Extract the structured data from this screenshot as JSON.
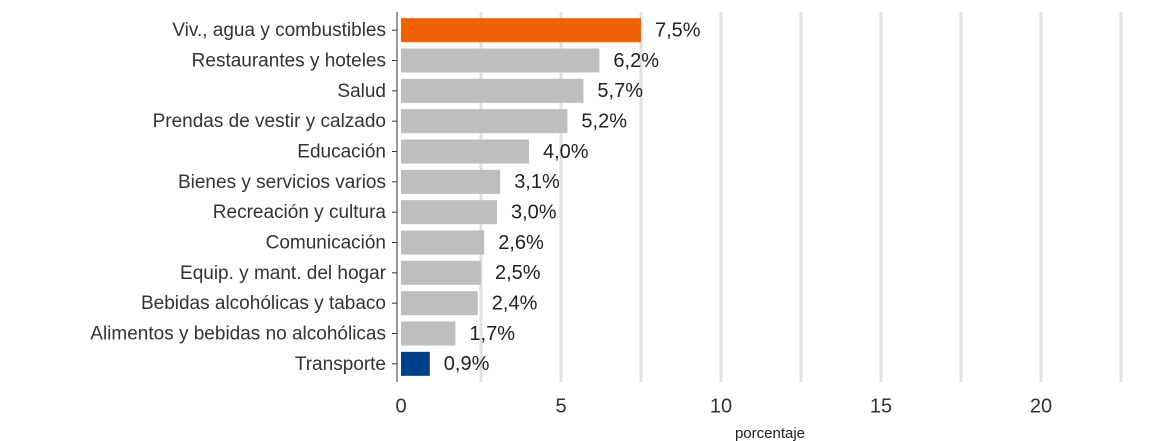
{
  "chart_data": {
    "type": "barh",
    "xlabel": "porcentaje",
    "categories": [
      "Viv., agua y combustibles",
      "Restaurantes y hoteles",
      "Salud",
      "Prendas de vestir y calzado",
      "Educación",
      "Bienes y servicios varios",
      "Recreación y cultura",
      "Comunicación",
      "Equip. y mant. del hogar",
      "Bebidas alcohólicas y tabaco",
      "Alimentos y bebidas no alcohólicas",
      "Transporte"
    ],
    "values": [
      7.5,
      6.2,
      5.7,
      5.2,
      4.0,
      3.1,
      3.0,
      2.6,
      2.5,
      2.4,
      1.7,
      0.9
    ],
    "value_labels": [
      "7,5%",
      "6,2%",
      "5,7%",
      "5,2%",
      "4,0%",
      "3,1%",
      "3,0%",
      "2,6%",
      "2,5%",
      "2,4%",
      "1,7%",
      "0,9%"
    ],
    "colors": [
      "#f26101",
      "#bebebe",
      "#bebebe",
      "#bebebe",
      "#bebebe",
      "#bebebe",
      "#bebebe",
      "#bebebe",
      "#bebebe",
      "#bebebe",
      "#bebebe",
      "#003f8a"
    ],
    "xlim": [
      0,
      23
    ],
    "xticks": [
      0,
      5,
      10,
      15,
      20
    ],
    "xminor": [
      2.5,
      7.5,
      12.5,
      17.5,
      22.5
    ],
    "grid": true
  }
}
